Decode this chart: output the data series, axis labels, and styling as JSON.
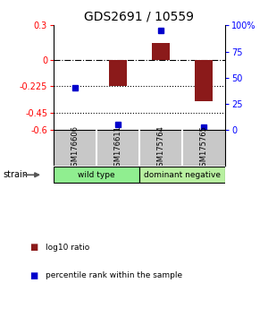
{
  "title": "GDS2691 / 10559",
  "samples": [
    "GSM176606",
    "GSM176611",
    "GSM175764",
    "GSM175765"
  ],
  "log10_ratio": [
    0.0,
    -0.225,
    0.15,
    -0.35
  ],
  "percentile_rank": [
    40,
    5,
    95,
    3
  ],
  "groups": [
    {
      "label": "wild type",
      "samples": [
        0,
        1
      ],
      "color": "#90ee90"
    },
    {
      "label": "dominant negative",
      "samples": [
        2,
        3
      ],
      "color": "#b8f0a0"
    }
  ],
  "group_row_label": "strain",
  "ylim_left": [
    -0.6,
    0.3
  ],
  "ylim_right": [
    0,
    100
  ],
  "yticks_left": [
    0.3,
    0.0,
    -0.225,
    -0.45,
    -0.6
  ],
  "yticks_left_labels": [
    "0.3",
    "0",
    "-0.225",
    "-0.45",
    "-0.6"
  ],
  "yticks_right": [
    100,
    75,
    50,
    25,
    0
  ],
  "yticks_right_labels": [
    "100%",
    "75",
    "50",
    "25",
    "0"
  ],
  "hlines_dotted": [
    -0.225,
    -0.45
  ],
  "hline_dashdot": 0.0,
  "bar_color": "#8b1a1a",
  "dot_color": "#0000cc",
  "bar_width": 0.4,
  "title_fontsize": 10,
  "tick_fontsize": 7,
  "sample_box_color": "#c8c8c8",
  "background_color": "#ffffff"
}
